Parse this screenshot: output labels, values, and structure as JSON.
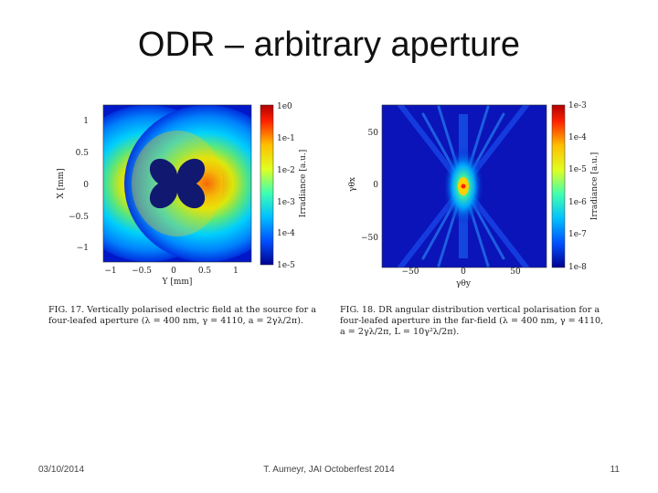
{
  "slide": {
    "title": "ODR – arbitrary aperture",
    "footer": {
      "date": "03/10/2014",
      "center": "T. Aumeyr, JAI Octoberfest 2014",
      "page": "11"
    }
  },
  "figure_left": {
    "y_ticks": [
      "1",
      "0.5",
      "0",
      "−0.5",
      "−1"
    ],
    "x_ticks": [
      "−1",
      "−0.5",
      "0",
      "0.5",
      "1"
    ],
    "y_label": "X [mm]",
    "x_label": "Y [mm]",
    "colorbar_ticks": [
      "1e0",
      "1e-1",
      "1e-2",
      "1e-3",
      "1e-4",
      "1e-5"
    ],
    "colorbar_label": "Irradiance [a.u.]",
    "caption_line1": "FIG. 17. Vertically polarised electric field at the source for a",
    "caption_line2": "four-leafed aperture (λ = 400 nm, γ = 4110, a = 2γλ/2π)."
  },
  "figure_right": {
    "y_ticks": [
      "50",
      "0",
      "−50"
    ],
    "x_ticks": [
      "−50",
      "0",
      "50"
    ],
    "y_label": "γθx",
    "x_label": "γθy",
    "colorbar_ticks": [
      "1e-3",
      "1e-4",
      "1e-5",
      "1e-6",
      "1e-7",
      "1e-8"
    ],
    "colorbar_label": "Irradiance [a.u.]",
    "caption_line1": "FIG. 18. DR angular distribution vertical polarisation for a",
    "caption_line2": "four-leafed aperture in the far-field (λ = 400 nm, γ = 4110,",
    "caption_line3": "a = 2γλ/2π, L = 10γ²λ/2π)."
  }
}
